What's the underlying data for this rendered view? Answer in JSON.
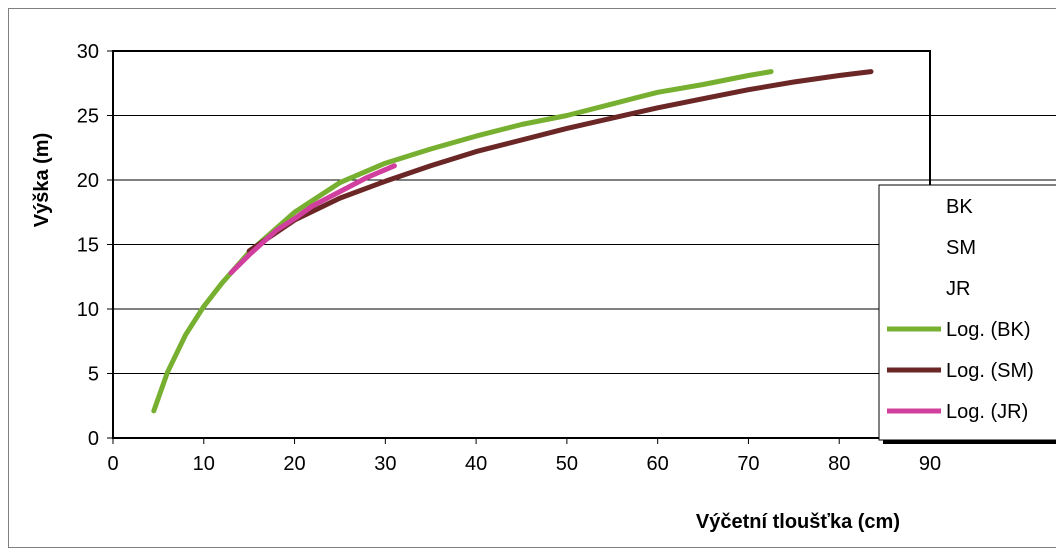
{
  "chart_data": {
    "type": "line",
    "title": "",
    "xlabel": "Výčetní tloušťka (cm)",
    "ylabel": "Výška (m)",
    "xlim": [
      0,
      90
    ],
    "ylim": [
      0,
      30
    ],
    "xticks": [
      0,
      10,
      20,
      30,
      40,
      50,
      60,
      70,
      80,
      90
    ],
    "yticks": [
      0,
      5,
      10,
      15,
      20,
      25,
      30
    ],
    "grid": "horizontal",
    "legend_position": "right",
    "legend": [
      "BK",
      "SM",
      "JR",
      "Log. (BK)",
      "Log. (SM)",
      "Log. (JR)"
    ],
    "series": [
      {
        "name": "Log. (BK)",
        "color": "#77b030",
        "x": [
          4.5,
          6,
          8,
          10,
          12,
          15,
          20,
          25,
          30,
          35,
          40,
          45,
          50,
          55,
          60,
          65,
          70,
          72.5
        ],
        "y": [
          2.1,
          5.1,
          8.0,
          10.2,
          12.0,
          14.4,
          17.5,
          19.8,
          21.3,
          22.4,
          23.4,
          24.3,
          25.0,
          25.9,
          26.8,
          27.4,
          28.1,
          28.4
        ]
      },
      {
        "name": "Log. (SM)",
        "color": "#6b2626",
        "x": [
          15,
          20,
          25,
          30,
          35,
          40,
          45,
          50,
          55,
          60,
          65,
          70,
          75,
          80,
          83.5
        ],
        "y": [
          14.5,
          16.9,
          18.6,
          19.9,
          21.1,
          22.2,
          23.1,
          24.0,
          24.8,
          25.6,
          26.3,
          27.0,
          27.6,
          28.1,
          28.4
        ]
      },
      {
        "name": "Log. (JR)",
        "color": "#d13f9e",
        "x": [
          13,
          15,
          18,
          20,
          22,
          25,
          28,
          31
        ],
        "y": [
          12.8,
          14.2,
          16.1,
          17.0,
          18.0,
          19.1,
          20.2,
          21.1
        ]
      }
    ]
  }
}
